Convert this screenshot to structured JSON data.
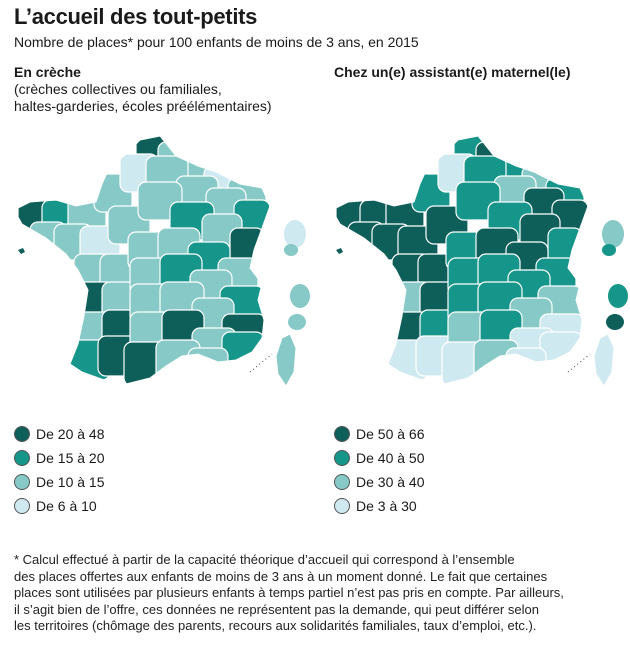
{
  "title": "L’accueil des tout-petits",
  "subtitle": "Nombre de places* pour 100 enfants de moins de 3 ans, en 2015",
  "colors": {
    "dark": "#0e5f5a",
    "medium": "#16958a",
    "light": "#86c9c7",
    "pale": "#cfe9f1",
    "border": "#ffffff"
  },
  "maps": [
    {
      "id": "creche",
      "heading": "En crèche",
      "subheading": "(crèches collectives ou familiales,",
      "subheading2": "haltes-garderies, écoles préélémentaires)",
      "legend": [
        {
          "label": "De 20 à 48",
          "class": "dark"
        },
        {
          "label": "De 15 à 20",
          "class": "medium"
        },
        {
          "label": "De 10 à 15",
          "class": "light"
        },
        {
          "label": "De 6 à 10",
          "class": "pale"
        }
      ],
      "regions": [
        "dark",
        "light",
        "light",
        "pale",
        "light",
        "dark",
        "medium",
        "light",
        "light",
        "pale",
        "light",
        "light",
        "light",
        "medium",
        "light",
        "light",
        "pale",
        "light",
        "light",
        "medium",
        "light",
        "dark",
        "light",
        "light",
        "light",
        "light",
        "medium",
        "light",
        "dark",
        "light",
        "light",
        "medium",
        "light",
        "medium",
        "light",
        "dark",
        "light",
        "light",
        "light",
        "dark",
        "medium",
        "dark",
        "light",
        "dark",
        "light",
        "medium",
        "dark",
        "light",
        "light"
      ]
    },
    {
      "id": "assistant",
      "heading": "Chez un(e) assistant(e) maternel(le)",
      "subheading": "",
      "subheading2": "",
      "legend": [
        {
          "label": "De 50 à 66",
          "class": "dark"
        },
        {
          "label": "De 40 à 50",
          "class": "medium"
        },
        {
          "label": "De 30 à 40",
          "class": "light"
        },
        {
          "label": "De 3 à 30",
          "class": "pale"
        }
      ],
      "regions": [
        "medium",
        "dark",
        "medium",
        "light",
        "medium",
        "dark",
        "dark",
        "dark",
        "medium",
        "pale",
        "medium",
        "light",
        "dark",
        "dark",
        "dark",
        "dark",
        "dark",
        "dark",
        "medium",
        "medium",
        "dark",
        "medium",
        "dark",
        "dark",
        "medium",
        "dark",
        "dark",
        "medium",
        "light",
        "dark",
        "medium",
        "medium",
        "medium",
        "light",
        "dark",
        "medium",
        "medium",
        "medium",
        "light",
        "pale",
        "pale",
        "pale",
        "light",
        "medium",
        "pale",
        "pale",
        "pale",
        "light",
        "pale"
      ]
    }
  ],
  "footnote": [
    "* Calcul effectué à partir de la capacité théorique d’accueil qui correspond à l’ensemble",
    "des places offertes aux enfants de moins de 3 ans à un moment donné. Le fait que certaines",
    "places sont utilisées par plusieurs enfants à temps partiel n’est pas pris en compte. Par ailleurs,",
    "il s’agit bien de l’offre, ces données ne représentent pas la demande, qui peut différer selon",
    "les territoires (chômage des parents, recours aux solidarités familiales, taux d’emploi, etc.)."
  ]
}
